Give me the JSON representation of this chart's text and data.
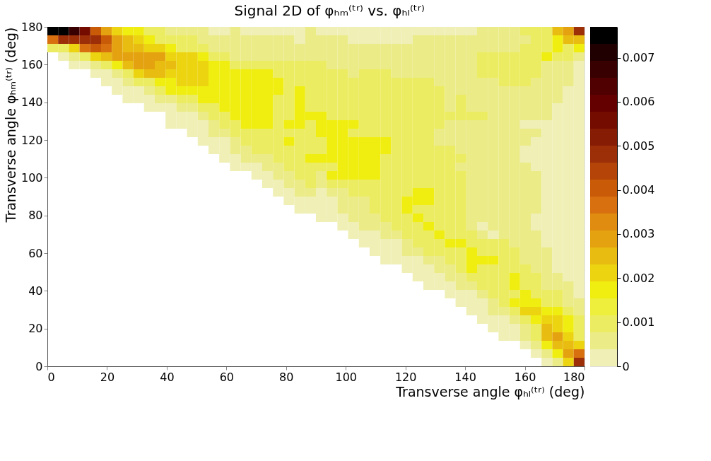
{
  "chart_data": {
    "type": "heatmap",
    "title": "Signal 2D of φₕₘ⁽ᵗʳ⁾ vs. φₕₗ⁽ᵗʳ⁾",
    "xlabel": "Transverse angle φₕₗ⁽ᵗʳ⁾ (deg)",
    "ylabel": "Transverse angle φₕₘ⁽ᵗʳ⁾ (deg)",
    "xlim": [
      0,
      180
    ],
    "xticks": [
      0,
      20,
      40,
      60,
      80,
      100,
      120,
      140,
      160,
      180
    ],
    "ylim": [
      0,
      180
    ],
    "yticks": [
      0,
      20,
      40,
      60,
      80,
      100,
      120,
      140,
      160,
      180
    ],
    "clim": [
      0,
      0.0077
    ],
    "cticks": [
      0,
      0.001,
      0.002,
      0.003,
      0.004,
      0.005,
      0.006,
      0.007
    ],
    "grid": false,
    "cells": [
      [
        0.0076,
        0.0076,
        0.0067,
        0.0057,
        0.0041,
        0.0029,
        0.0021,
        0.0017,
        0.0017,
        0.001,
        0.001,
        0.0006,
        0.0006,
        0.0006,
        0.0006,
        0.0002,
        0.0002,
        0.0006,
        0.0002,
        0.0002,
        0.0002,
        0.0002,
        0.0002,
        0.0002,
        0.0006,
        0.0002,
        0.0002,
        0.0002,
        0.0002,
        0.0002,
        0.0002,
        0.0002,
        0.0002,
        0.0002,
        0.0002,
        0.0002,
        0.0002,
        0.0002,
        0.0002,
        0.0002,
        0.0006,
        0.0006,
        0.0006,
        0.0006,
        0.001,
        0.001,
        0.001,
        0.0025,
        0.0029,
        0.0049
      ],
      [
        0.0036,
        0.0049,
        0.0049,
        0.0049,
        0.0049,
        0.0041,
        0.0029,
        0.0025,
        0.0021,
        0.0017,
        0.001,
        0.001,
        0.001,
        0.001,
        0.0006,
        0.0006,
        0.0006,
        0.0006,
        0.0006,
        0.0006,
        0.0006,
        0.0006,
        0.0006,
        0.0002,
        0.0006,
        0.0006,
        0.0006,
        0.0006,
        0.0002,
        0.0002,
        0.0002,
        0.0002,
        0.0002,
        0.0002,
        0.0006,
        0.0006,
        0.0006,
        0.0006,
        0.0006,
        0.0006,
        0.0006,
        0.0006,
        0.0006,
        0.0006,
        0.0006,
        0.001,
        0.001,
        0.0017,
        0.0025,
        0.0025
      ],
      [
        0.001,
        0.001,
        0.0021,
        0.0036,
        0.0041,
        0.0036,
        0.0029,
        0.0025,
        0.0025,
        0.0021,
        0.0021,
        0.0017,
        0.001,
        0.001,
        0.001,
        0.0006,
        0.0006,
        0.0006,
        0.0006,
        0.0006,
        0.0006,
        0.0006,
        0.0006,
        0.0006,
        0.0006,
        0.0006,
        0.0006,
        0.0006,
        0.0006,
        0.0006,
        0.0006,
        0.0006,
        0.0006,
        0.0006,
        0.0006,
        0.0006,
        0.0006,
        0.0006,
        0.0006,
        0.0006,
        0.0006,
        0.0006,
        0.0006,
        0.0006,
        0.001,
        0.001,
        0.001,
        0.0017,
        0.001,
        0.0017
      ],
      [
        null,
        0.0002,
        0.0006,
        0.001,
        0.0021,
        0.0025,
        0.0029,
        0.0029,
        0.0029,
        0.0029,
        0.0029,
        0.0021,
        0.0021,
        0.0021,
        0.0017,
        0.001,
        0.001,
        0.0006,
        0.0006,
        0.0006,
        0.0006,
        0.0006,
        0.0006,
        0.0006,
        0.0006,
        0.0006,
        0.0006,
        0.0006,
        0.0006,
        0.0006,
        0.0006,
        0.0006,
        0.0006,
        0.0006,
        0.0006,
        0.0006,
        0.0006,
        0.0006,
        0.0006,
        0.0006,
        0.001,
        0.001,
        0.001,
        0.001,
        0.001,
        0.001,
        0.0017,
        0.001,
        0.001,
        0.0006
      ],
      [
        null,
        null,
        0.0002,
        0.0002,
        0.0006,
        0.001,
        0.0017,
        0.0025,
        0.0029,
        0.0029,
        0.0025,
        0.0025,
        0.0021,
        0.0021,
        0.0021,
        0.0017,
        0.0017,
        0.001,
        0.001,
        0.001,
        0.001,
        0.001,
        0.001,
        0.001,
        0.001,
        0.001,
        0.0006,
        0.0006,
        0.0006,
        0.0006,
        0.0006,
        0.0006,
        0.0006,
        0.0006,
        0.0006,
        0.0006,
        0.0006,
        0.0006,
        0.0006,
        0.0006,
        0.001,
        0.001,
        0.001,
        0.001,
        0.001,
        0.001,
        0.0006,
        0.0006,
        0.0006,
        0.0002
      ],
      [
        null,
        null,
        null,
        null,
        0.0002,
        0.0002,
        0.0006,
        0.001,
        0.0021,
        0.0025,
        0.0025,
        0.0021,
        0.0021,
        0.0021,
        0.0021,
        0.0017,
        0.0017,
        0.0017,
        0.0017,
        0.0017,
        0.0017,
        0.001,
        0.001,
        0.001,
        0.001,
        0.001,
        0.001,
        0.001,
        0.0006,
        0.001,
        0.001,
        0.001,
        0.0006,
        0.0006,
        0.0006,
        0.0006,
        0.0006,
        0.0006,
        0.0006,
        0.0006,
        0.001,
        0.001,
        0.001,
        0.001,
        0.001,
        0.001,
        0.0006,
        0.0006,
        0.0006,
        0.0002
      ],
      [
        null,
        null,
        null,
        null,
        null,
        0.0002,
        0.0002,
        0.0006,
        0.001,
        0.001,
        0.0017,
        0.0017,
        0.0021,
        0.0021,
        0.0021,
        0.0017,
        0.0017,
        0.0017,
        0.0017,
        0.0017,
        0.0017,
        0.0017,
        0.001,
        0.001,
        0.001,
        0.001,
        0.001,
        0.001,
        0.001,
        0.001,
        0.001,
        0.001,
        0.001,
        0.001,
        0.001,
        0.001,
        0.0006,
        0.0006,
        0.0006,
        0.0006,
        0.0006,
        0.0006,
        0.001,
        0.001,
        0.001,
        0.0006,
        0.0006,
        0.0006,
        0.0006,
        0.0002
      ],
      [
        null,
        null,
        null,
        null,
        null,
        null,
        0.0002,
        0.0002,
        0.0002,
        0.0006,
        0.001,
        0.0017,
        0.0017,
        0.0017,
        0.0017,
        0.0017,
        0.0017,
        0.0017,
        0.0017,
        0.0017,
        0.0017,
        0.0017,
        0.001,
        0.0017,
        0.001,
        0.001,
        0.001,
        0.001,
        0.001,
        0.001,
        0.001,
        0.001,
        0.001,
        0.001,
        0.001,
        0.001,
        0.001,
        0.0006,
        0.0006,
        0.0006,
        0.0006,
        0.0006,
        0.0006,
        0.0006,
        0.0006,
        0.0006,
        0.0006,
        0.0006,
        0.0002,
        0.0002
      ],
      [
        null,
        null,
        null,
        null,
        null,
        null,
        null,
        0.0002,
        0.0002,
        0.0002,
        0.0006,
        0.0006,
        0.001,
        0.001,
        0.0017,
        0.0017,
        0.0017,
        0.0017,
        0.0017,
        0.0017,
        0.0017,
        0.001,
        0.001,
        0.0017,
        0.001,
        0.001,
        0.001,
        0.001,
        0.001,
        0.001,
        0.001,
        0.001,
        0.001,
        0.001,
        0.001,
        0.001,
        0.001,
        0.0006,
        0.001,
        0.0006,
        0.0006,
        0.0006,
        0.0006,
        0.0006,
        0.0006,
        0.0006,
        0.0006,
        0.0006,
        0.0002,
        0.0002
      ],
      [
        null,
        null,
        null,
        null,
        null,
        null,
        null,
        null,
        null,
        0.0002,
        0.0002,
        0.0002,
        0.0006,
        0.0006,
        0.001,
        0.001,
        0.0017,
        0.0017,
        0.0017,
        0.0017,
        0.0017,
        0.001,
        0.001,
        0.0017,
        0.001,
        0.001,
        0.001,
        0.001,
        0.001,
        0.001,
        0.001,
        0.001,
        0.001,
        0.001,
        0.001,
        0.001,
        0.001,
        0.0006,
        0.001,
        0.0006,
        0.0006,
        0.0006,
        0.0006,
        0.0006,
        0.0006,
        0.0006,
        0.0006,
        0.0002,
        0.0002,
        0.0002
      ],
      [
        null,
        null,
        null,
        null,
        null,
        null,
        null,
        null,
        null,
        null,
        null,
        0.0002,
        0.0002,
        0.0002,
        0.0006,
        0.001,
        0.001,
        0.0017,
        0.0017,
        0.0017,
        0.0017,
        0.001,
        0.001,
        0.0017,
        0.0017,
        0.0017,
        0.001,
        0.001,
        0.001,
        0.001,
        0.001,
        0.001,
        0.001,
        0.001,
        0.001,
        0.001,
        0.001,
        0.001,
        0.001,
        0.001,
        0.001,
        0.0006,
        0.0006,
        0.0006,
        0.0006,
        0.0006,
        0.0006,
        0.0002,
        0.0002,
        0.0002
      ],
      [
        null,
        null,
        null,
        null,
        null,
        null,
        null,
        null,
        null,
        null,
        null,
        0.0002,
        0.0002,
        0.0002,
        0.0002,
        0.0006,
        0.001,
        0.001,
        0.0017,
        0.0017,
        0.0017,
        0.001,
        0.0017,
        0.0017,
        0.001,
        0.0017,
        0.0017,
        0.0017,
        0.0017,
        0.001,
        0.001,
        0.001,
        0.001,
        0.001,
        0.001,
        0.001,
        0.001,
        0.0006,
        0.0006,
        0.0006,
        0.0006,
        0.0006,
        0.0006,
        0.0006,
        0.0002,
        0.0002,
        0.0002,
        0.0002,
        0.0002,
        0.0002
      ],
      [
        null,
        null,
        null,
        null,
        null,
        null,
        null,
        null,
        null,
        null,
        null,
        null,
        null,
        0.0002,
        0.0002,
        0.0006,
        0.0006,
        0.001,
        0.001,
        0.001,
        0.001,
        0.001,
        0.001,
        0.001,
        0.001,
        0.0017,
        0.0017,
        0.0017,
        0.001,
        0.001,
        0.001,
        0.001,
        0.001,
        0.001,
        0.001,
        0.001,
        0.0006,
        0.0006,
        0.0006,
        0.0006,
        0.0006,
        0.0006,
        0.0006,
        0.0006,
        0.0006,
        0.0006,
        0.0002,
        0.0002,
        0.0002,
        0.0002
      ],
      [
        null,
        null,
        null,
        null,
        null,
        null,
        null,
        null,
        null,
        null,
        null,
        null,
        null,
        null,
        0.0002,
        0.0002,
        0.0002,
        0.0006,
        0.001,
        0.001,
        0.001,
        0.001,
        0.0017,
        0.001,
        0.001,
        0.001,
        0.0017,
        0.0017,
        0.0017,
        0.0017,
        0.0017,
        0.0017,
        0.001,
        0.001,
        0.001,
        0.001,
        0.0006,
        0.0006,
        0.0006,
        0.0006,
        0.0006,
        0.0006,
        0.0006,
        0.0006,
        0.0006,
        0.0002,
        0.0002,
        0.0002,
        0.0002,
        0.0002
      ],
      [
        null,
        null,
        null,
        null,
        null,
        null,
        null,
        null,
        null,
        null,
        null,
        null,
        null,
        null,
        null,
        0.0002,
        0.0002,
        0.0006,
        0.0006,
        0.001,
        0.001,
        0.001,
        0.001,
        0.001,
        0.001,
        0.001,
        0.0017,
        0.0017,
        0.0017,
        0.0017,
        0.0017,
        0.0017,
        0.001,
        0.001,
        0.001,
        0.001,
        0.001,
        0.001,
        0.0006,
        0.0006,
        0.0006,
        0.0006,
        0.0006,
        0.0006,
        0.0002,
        0.0002,
        0.0002,
        0.0002,
        0.0002,
        0.0002
      ],
      [
        null,
        null,
        null,
        null,
        null,
        null,
        null,
        null,
        null,
        null,
        null,
        null,
        null,
        null,
        null,
        null,
        0.0002,
        0.0002,
        0.0006,
        0.0006,
        0.0006,
        0.001,
        0.001,
        0.001,
        0.0017,
        0.0017,
        0.0017,
        0.0017,
        0.0017,
        0.0017,
        0.0017,
        0.001,
        0.001,
        0.001,
        0.001,
        0.001,
        0.001,
        0.001,
        0.001,
        0.0006,
        0.0006,
        0.0006,
        0.0006,
        0.0006,
        0.0002,
        0.0002,
        0.0002,
        0.0002,
        0.0002,
        0.0002
      ],
      [
        null,
        null,
        null,
        null,
        null,
        null,
        null,
        null,
        null,
        null,
        null,
        null,
        null,
        null,
        null,
        null,
        null,
        0.0002,
        0.0002,
        0.0002,
        0.0006,
        0.0006,
        0.001,
        0.001,
        0.001,
        0.001,
        0.001,
        0.0017,
        0.0017,
        0.0017,
        0.0017,
        0.001,
        0.001,
        0.001,
        0.001,
        0.001,
        0.001,
        0.001,
        0.0006,
        0.0006,
        0.0006,
        0.0006,
        0.0006,
        0.0006,
        0.0006,
        0.0002,
        0.0002,
        0.0002,
        0.0002,
        0.0002
      ],
      [
        null,
        null,
        null,
        null,
        null,
        null,
        null,
        null,
        null,
        null,
        null,
        null,
        null,
        null,
        null,
        null,
        null,
        null,
        null,
        0.0002,
        0.0002,
        0.0006,
        0.0006,
        0.001,
        0.001,
        0.0006,
        0.0017,
        0.0017,
        0.0017,
        0.0017,
        0.0017,
        0.001,
        0.001,
        0.001,
        0.001,
        0.001,
        0.001,
        0.001,
        0.001,
        0.0006,
        0.0006,
        0.0006,
        0.0006,
        0.0006,
        0.0006,
        0.0006,
        0.0002,
        0.0002,
        0.0002,
        0.0002
      ],
      [
        null,
        null,
        null,
        null,
        null,
        null,
        null,
        null,
        null,
        null,
        null,
        null,
        null,
        null,
        null,
        null,
        null,
        null,
        null,
        null,
        0.0002,
        0.0002,
        0.0006,
        0.0006,
        0.001,
        0.0006,
        0.001,
        0.001,
        0.001,
        0.001,
        0.001,
        0.001,
        0.001,
        0.001,
        0.001,
        0.001,
        0.001,
        0.001,
        0.001,
        0.0006,
        0.0006,
        0.0006,
        0.0006,
        0.0006,
        0.0006,
        0.0006,
        0.0002,
        0.0002,
        0.0002,
        0.0002
      ],
      [
        null,
        null,
        null,
        null,
        null,
        null,
        null,
        null,
        null,
        null,
        null,
        null,
        null,
        null,
        null,
        null,
        null,
        null,
        null,
        null,
        null,
        0.0002,
        0.0002,
        0.0006,
        0.0006,
        0.0002,
        0.0006,
        0.0006,
        0.001,
        0.001,
        0.001,
        0.001,
        0.001,
        0.001,
        0.0017,
        0.0017,
        0.001,
        0.001,
        0.001,
        0.0006,
        0.0006,
        0.0006,
        0.0006,
        0.0006,
        0.0006,
        0.0006,
        0.0002,
        0.0002,
        0.0002,
        0.0002
      ],
      [
        null,
        null,
        null,
        null,
        null,
        null,
        null,
        null,
        null,
        null,
        null,
        null,
        null,
        null,
        null,
        null,
        null,
        null,
        null,
        null,
        null,
        null,
        0.0002,
        0.0002,
        0.0002,
        0.0002,
        0.0002,
        0.0006,
        0.0006,
        0.0006,
        0.001,
        0.001,
        0.001,
        0.0017,
        0.0017,
        0.0017,
        0.001,
        0.001,
        0.001,
        0.0006,
        0.0006,
        0.0006,
        0.0006,
        0.0006,
        0.0006,
        0.0006,
        0.0002,
        0.0002,
        0.0002,
        0.0002
      ],
      [
        null,
        null,
        null,
        null,
        null,
        null,
        null,
        null,
        null,
        null,
        null,
        null,
        null,
        null,
        null,
        null,
        null,
        null,
        null,
        null,
        null,
        null,
        null,
        0.0002,
        0.0002,
        0.0002,
        0.0002,
        0.0006,
        0.0006,
        0.0006,
        0.001,
        0.001,
        0.001,
        0.0017,
        0.001,
        0.001,
        0.001,
        0.001,
        0.001,
        0.0006,
        0.0006,
        0.0006,
        0.0006,
        0.0006,
        0.0006,
        0.0006,
        0.0002,
        0.0002,
        0.0002,
        0.0002
      ],
      [
        null,
        null,
        null,
        null,
        null,
        null,
        null,
        null,
        null,
        null,
        null,
        null,
        null,
        null,
        null,
        null,
        null,
        null,
        null,
        null,
        null,
        null,
        null,
        null,
        null,
        0.0002,
        0.0002,
        0.0002,
        0.0006,
        0.0006,
        0.0006,
        0.001,
        0.001,
        0.001,
        0.0017,
        0.001,
        0.001,
        0.001,
        0.001,
        0.0006,
        0.0006,
        0.0006,
        0.0006,
        0.0006,
        0.0006,
        0.0002,
        0.0002,
        0.0002,
        0.0002,
        0.0002
      ],
      [
        null,
        null,
        null,
        null,
        null,
        null,
        null,
        null,
        null,
        null,
        null,
        null,
        null,
        null,
        null,
        null,
        null,
        null,
        null,
        null,
        null,
        null,
        null,
        null,
        null,
        null,
        null,
        0.0002,
        0.0002,
        0.0006,
        0.0006,
        0.0006,
        0.001,
        0.001,
        0.001,
        0.0017,
        0.001,
        0.001,
        0.001,
        0.0006,
        0.0002,
        0.0006,
        0.0006,
        0.0006,
        0.0006,
        0.0002,
        0.0002,
        0.0002,
        0.0002,
        0.0002
      ],
      [
        null,
        null,
        null,
        null,
        null,
        null,
        null,
        null,
        null,
        null,
        null,
        null,
        null,
        null,
        null,
        null,
        null,
        null,
        null,
        null,
        null,
        null,
        null,
        null,
        null,
        null,
        null,
        null,
        0.0002,
        0.0002,
        0.0002,
        0.0006,
        0.0006,
        0.001,
        0.001,
        0.001,
        0.0017,
        0.001,
        0.001,
        0.001,
        0.0006,
        0.0002,
        0.0006,
        0.0006,
        0.0006,
        0.0006,
        0.0002,
        0.0002,
        0.0002,
        0.0002
      ],
      [
        null,
        null,
        null,
        null,
        null,
        null,
        null,
        null,
        null,
        null,
        null,
        null,
        null,
        null,
        null,
        null,
        null,
        null,
        null,
        null,
        null,
        null,
        null,
        null,
        null,
        null,
        null,
        null,
        null,
        0.0002,
        0.0002,
        0.0002,
        0.0002,
        0.0006,
        0.001,
        0.001,
        0.001,
        0.0017,
        0.0017,
        0.001,
        0.001,
        0.001,
        0.001,
        0.0006,
        0.0006,
        0.0006,
        0.0002,
        0.0002,
        0.0002,
        0.0002
      ],
      [
        null,
        null,
        null,
        null,
        null,
        null,
        null,
        null,
        null,
        null,
        null,
        null,
        null,
        null,
        null,
        null,
        null,
        null,
        null,
        null,
        null,
        null,
        null,
        null,
        null,
        null,
        null,
        null,
        null,
        null,
        0.0002,
        0.0002,
        0.0002,
        0.0006,
        0.0006,
        0.001,
        0.001,
        0.001,
        0.001,
        0.0017,
        0.001,
        0.001,
        0.001,
        0.001,
        0.0006,
        0.0006,
        0.0006,
        0.0002,
        0.0002,
        0.0002
      ],
      [
        null,
        null,
        null,
        null,
        null,
        null,
        null,
        null,
        null,
        null,
        null,
        null,
        null,
        null,
        null,
        null,
        null,
        null,
        null,
        null,
        null,
        null,
        null,
        null,
        null,
        null,
        null,
        null,
        null,
        null,
        null,
        0.0002,
        0.0002,
        0.0002,
        0.0002,
        0.0006,
        0.0006,
        0.001,
        0.001,
        0.0017,
        0.0017,
        0.0017,
        0.001,
        0.001,
        0.0006,
        0.0006,
        0.0006,
        0.0002,
        0.0002,
        0.0002
      ],
      [
        null,
        null,
        null,
        null,
        null,
        null,
        null,
        null,
        null,
        null,
        null,
        null,
        null,
        null,
        null,
        null,
        null,
        null,
        null,
        null,
        null,
        null,
        null,
        null,
        null,
        null,
        null,
        null,
        null,
        null,
        null,
        null,
        null,
        0.0002,
        0.0002,
        0.0002,
        0.0006,
        0.0006,
        0.001,
        0.0017,
        0.001,
        0.001,
        0.001,
        0.001,
        0.001,
        0.0006,
        0.0006,
        0.0002,
        0.0002,
        0.0002
      ],
      [
        null,
        null,
        null,
        null,
        null,
        null,
        null,
        null,
        null,
        null,
        null,
        null,
        null,
        null,
        null,
        null,
        null,
        null,
        null,
        null,
        null,
        null,
        null,
        null,
        null,
        null,
        null,
        null,
        null,
        null,
        null,
        null,
        null,
        null,
        0.0002,
        0.0002,
        0.0002,
        0.0006,
        0.0006,
        0.001,
        0.001,
        0.001,
        0.001,
        0.0017,
        0.001,
        0.001,
        0.0006,
        0.0006,
        0.0002,
        0.0002
      ],
      [
        null,
        null,
        null,
        null,
        null,
        null,
        null,
        null,
        null,
        null,
        null,
        null,
        null,
        null,
        null,
        null,
        null,
        null,
        null,
        null,
        null,
        null,
        null,
        null,
        null,
        null,
        null,
        null,
        null,
        null,
        null,
        null,
        null,
        null,
        null,
        0.0002,
        0.0002,
        0.0002,
        0.0006,
        0.0006,
        0.001,
        0.001,
        0.001,
        0.0017,
        0.001,
        0.001,
        0.0006,
        0.0006,
        0.0006,
        0.0002
      ],
      [
        null,
        null,
        null,
        null,
        null,
        null,
        null,
        null,
        null,
        null,
        null,
        null,
        null,
        null,
        null,
        null,
        null,
        null,
        null,
        null,
        null,
        null,
        null,
        null,
        null,
        null,
        null,
        null,
        null,
        null,
        null,
        null,
        null,
        null,
        null,
        null,
        null,
        0.0002,
        0.0002,
        0.0002,
        0.0006,
        0.001,
        0.001,
        0.001,
        0.0017,
        0.001,
        0.001,
        0.001,
        0.0006,
        0.0002
      ],
      [
        null,
        null,
        null,
        null,
        null,
        null,
        null,
        null,
        null,
        null,
        null,
        null,
        null,
        null,
        null,
        null,
        null,
        null,
        null,
        null,
        null,
        null,
        null,
        null,
        null,
        null,
        null,
        null,
        null,
        null,
        null,
        null,
        null,
        null,
        null,
        null,
        null,
        null,
        0.0002,
        0.0002,
        0.0002,
        0.0006,
        0.001,
        0.0017,
        0.0017,
        0.0017,
        0.001,
        0.001,
        0.0006,
        0.0006
      ],
      [
        null,
        null,
        null,
        null,
        null,
        null,
        null,
        null,
        null,
        null,
        null,
        null,
        null,
        null,
        null,
        null,
        null,
        null,
        null,
        null,
        null,
        null,
        null,
        null,
        null,
        null,
        null,
        null,
        null,
        null,
        null,
        null,
        null,
        null,
        null,
        null,
        null,
        null,
        null,
        0.0002,
        0.0002,
        0.0006,
        0.0006,
        0.001,
        0.0021,
        0.0021,
        0.0017,
        0.0017,
        0.001,
        0.0006
      ],
      [
        null,
        null,
        null,
        null,
        null,
        null,
        null,
        null,
        null,
        null,
        null,
        null,
        null,
        null,
        null,
        null,
        null,
        null,
        null,
        null,
        null,
        null,
        null,
        null,
        null,
        null,
        null,
        null,
        null,
        null,
        null,
        null,
        null,
        null,
        null,
        null,
        null,
        null,
        null,
        null,
        0.0002,
        0.0002,
        0.0002,
        0.0006,
        0.001,
        0.0017,
        0.0021,
        0.0021,
        0.0017,
        0.001
      ],
      [
        null,
        null,
        null,
        null,
        null,
        null,
        null,
        null,
        null,
        null,
        null,
        null,
        null,
        null,
        null,
        null,
        null,
        null,
        null,
        null,
        null,
        null,
        null,
        null,
        null,
        null,
        null,
        null,
        null,
        null,
        null,
        null,
        null,
        null,
        null,
        null,
        null,
        null,
        null,
        null,
        null,
        0.0002,
        0.0002,
        0.0002,
        0.0006,
        0.001,
        0.0025,
        0.0021,
        0.0017,
        0.001
      ],
      [
        null,
        null,
        null,
        null,
        null,
        null,
        null,
        null,
        null,
        null,
        null,
        null,
        null,
        null,
        null,
        null,
        null,
        null,
        null,
        null,
        null,
        null,
        null,
        null,
        null,
        null,
        null,
        null,
        null,
        null,
        null,
        null,
        null,
        null,
        null,
        null,
        null,
        null,
        null,
        null,
        null,
        null,
        0.0002,
        0.0002,
        0.0006,
        0.001,
        0.0025,
        0.0029,
        0.0021,
        0.001
      ],
      [
        null,
        null,
        null,
        null,
        null,
        null,
        null,
        null,
        null,
        null,
        null,
        null,
        null,
        null,
        null,
        null,
        null,
        null,
        null,
        null,
        null,
        null,
        null,
        null,
        null,
        null,
        null,
        null,
        null,
        null,
        null,
        null,
        null,
        null,
        null,
        null,
        null,
        null,
        null,
        null,
        null,
        null,
        null,
        null,
        0.0002,
        0.0006,
        0.0017,
        0.0025,
        0.0025,
        0.0021
      ],
      [
        null,
        null,
        null,
        null,
        null,
        null,
        null,
        null,
        null,
        null,
        null,
        null,
        null,
        null,
        null,
        null,
        null,
        null,
        null,
        null,
        null,
        null,
        null,
        null,
        null,
        null,
        null,
        null,
        null,
        null,
        null,
        null,
        null,
        null,
        null,
        null,
        null,
        null,
        null,
        null,
        null,
        null,
        null,
        null,
        null,
        0.0002,
        0.0006,
        0.0017,
        0.0029,
        0.0036
      ],
      [
        null,
        null,
        null,
        null,
        null,
        null,
        null,
        null,
        null,
        null,
        null,
        null,
        null,
        null,
        null,
        null,
        null,
        null,
        null,
        null,
        null,
        null,
        null,
        null,
        null,
        null,
        null,
        null,
        null,
        null,
        null,
        null,
        null,
        null,
        null,
        null,
        null,
        null,
        null,
        null,
        null,
        null,
        null,
        null,
        null,
        null,
        0.0002,
        0.0006,
        0.0021,
        0.0049
      ]
    ]
  }
}
